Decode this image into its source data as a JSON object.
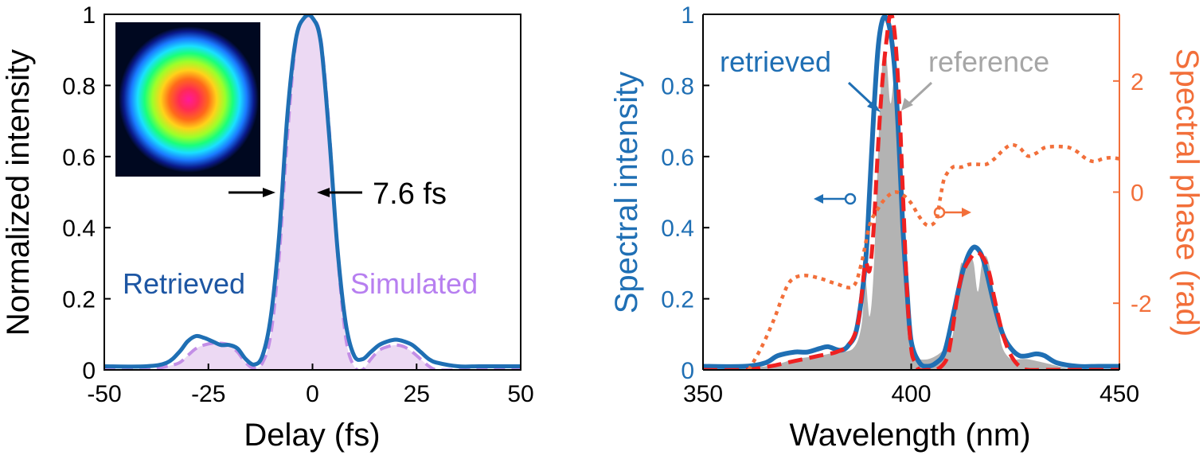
{
  "chart_data": [
    {
      "type": "line",
      "xlabel": "Delay (fs)",
      "ylabel": "Normalized intensity",
      "xlim": [
        -50,
        50
      ],
      "ylim": [
        0,
        1
      ],
      "xticks": [
        -50,
        -25,
        0,
        25,
        50
      ],
      "xtick_labels": [
        "-50",
        "-25",
        "0",
        "25",
        "50"
      ],
      "yticks": [
        0,
        0.2,
        0.4,
        0.6,
        0.8,
        1
      ],
      "ytick_labels": [
        "0",
        "0.2",
        "0.4",
        "0.6",
        "0.8",
        "1"
      ],
      "legend_labels": {
        "retrieved": "Retrieved",
        "simulated": "Simulated"
      },
      "annotation": "7.6 fs",
      "inset": "beam profile image",
      "colors": {
        "retrieved": "#1f6fb4",
        "simulated_line": "#c38ee6",
        "simulated_fill": "#ecd9f3",
        "retrieved_text": "#1d56a3",
        "simulated_text": "#b77ff0"
      },
      "series": [
        {
          "name": "Retrieved",
          "x": [
            -50,
            -40,
            -35,
            -32,
            -30,
            -28,
            -26,
            -24,
            -22,
            -20,
            -18,
            -16,
            -14,
            -12,
            -10,
            -8,
            -6,
            -4,
            -2,
            0,
            2,
            4,
            6,
            8,
            10,
            12,
            14,
            16,
            18,
            20,
            22,
            24,
            26,
            28,
            30,
            35,
            40,
            45,
            50
          ],
          "y": [
            0.01,
            0.01,
            0.02,
            0.05,
            0.08,
            0.095,
            0.09,
            0.08,
            0.07,
            0.07,
            0.06,
            0.03,
            0.015,
            0.04,
            0.15,
            0.38,
            0.72,
            0.93,
            0.99,
            0.99,
            0.92,
            0.66,
            0.34,
            0.13,
            0.04,
            0.03,
            0.05,
            0.07,
            0.08,
            0.085,
            0.08,
            0.07,
            0.05,
            0.03,
            0.02,
            0.01,
            0.01,
            0.01,
            0.01
          ]
        },
        {
          "name": "Simulated",
          "x": [
            -50,
            -40,
            -35,
            -32,
            -30,
            -28,
            -26,
            -24,
            -22,
            -20,
            -18,
            -16,
            -14,
            -12,
            -10,
            -8,
            -6,
            -4,
            -2,
            0,
            2,
            4,
            6,
            8,
            10,
            12,
            14,
            16,
            18,
            20,
            22,
            24,
            26,
            28,
            30,
            35,
            40,
            45,
            50
          ],
          "y": [
            0.0,
            0.0,
            0.01,
            0.02,
            0.04,
            0.06,
            0.07,
            0.075,
            0.075,
            0.07,
            0.05,
            0.02,
            0.005,
            0.02,
            0.1,
            0.32,
            0.66,
            0.92,
            0.99,
            0.99,
            0.93,
            0.68,
            0.33,
            0.09,
            0.01,
            0.0,
            0.03,
            0.055,
            0.065,
            0.07,
            0.065,
            0.05,
            0.03,
            0.01,
            0.0,
            0.0,
            0.0,
            0.0,
            0.0
          ]
        }
      ]
    },
    {
      "type": "line",
      "xlabel": "Wavelength (nm)",
      "ylabel": "Spectral intensity",
      "y2label": "Spectral phase (rad)",
      "xlim": [
        350,
        450
      ],
      "ylim": [
        0,
        1
      ],
      "y2lim": [
        -3.2,
        3.2
      ],
      "xticks": [
        350,
        400,
        450
      ],
      "xtick_labels": [
        "350",
        "400",
        "450"
      ],
      "yticks": [
        0,
        0.2,
        0.4,
        0.6,
        0.8,
        1
      ],
      "ytick_labels": [
        "0",
        "0.2",
        "0.4",
        "0.6",
        "0.8",
        "1"
      ],
      "y2ticks": [
        -2,
        0,
        2
      ],
      "y2tick_labels": [
        "-2",
        "0",
        "2"
      ],
      "legend_labels": {
        "retrieved": "retrieved",
        "reference": "reference"
      },
      "colors": {
        "retrieved": "#1f6fb4",
        "reference": "#b3b3b3",
        "dashed": "#ef2121",
        "phase": "#f26f3a"
      },
      "series": [
        {
          "name": "retrieved",
          "x": [
            350,
            360,
            365,
            368,
            372,
            375,
            378,
            380,
            383,
            385,
            387,
            389,
            390,
            391,
            392,
            393,
            394,
            395,
            396,
            397,
            398,
            399,
            400,
            402,
            404,
            406,
            408,
            410,
            412,
            413,
            414,
            415,
            416,
            417,
            418,
            420,
            422,
            424,
            426,
            428,
            430,
            432,
            435,
            440,
            445,
            450
          ],
          "y": [
            0.01,
            0.01,
            0.02,
            0.04,
            0.05,
            0.05,
            0.06,
            0.065,
            0.055,
            0.07,
            0.12,
            0.3,
            0.5,
            0.72,
            0.9,
            0.98,
            0.99,
            0.95,
            0.85,
            0.65,
            0.4,
            0.22,
            0.08,
            0.02,
            0.01,
            0.02,
            0.05,
            0.15,
            0.26,
            0.3,
            0.33,
            0.345,
            0.34,
            0.32,
            0.28,
            0.18,
            0.1,
            0.06,
            0.04,
            0.04,
            0.045,
            0.04,
            0.02,
            0.01,
            0.01,
            0.01
          ]
        },
        {
          "name": "reference",
          "x": [
            350,
            365,
            372,
            378,
            382,
            386,
            388,
            389,
            390,
            391,
            392,
            393,
            394,
            395,
            396,
            397,
            398,
            399,
            400,
            401,
            402,
            404,
            406,
            408,
            410,
            411,
            412,
            413,
            414,
            415,
            416,
            417,
            418,
            419,
            420,
            421,
            422,
            424,
            426,
            428,
            432,
            440,
            450
          ],
          "y": [
            0.0,
            0.01,
            0.03,
            0.04,
            0.05,
            0.06,
            0.12,
            0.25,
            0.15,
            0.28,
            0.6,
            0.85,
            0.88,
            0.75,
            0.82,
            0.72,
            0.5,
            0.15,
            0.05,
            0.04,
            0.03,
            0.03,
            0.04,
            0.06,
            0.1,
            0.22,
            0.3,
            0.28,
            0.32,
            0.3,
            0.22,
            0.3,
            0.32,
            0.28,
            0.2,
            0.12,
            0.06,
            0.03,
            0.03,
            0.03,
            0.02,
            0.0,
            0.0
          ]
        },
        {
          "x": [
            350,
            360,
            366,
            370,
            374,
            378,
            382,
            385,
            387,
            388,
            389,
            390,
            391,
            392,
            393,
            394,
            395,
            396,
            397,
            398,
            399,
            400,
            401,
            402,
            404,
            406,
            408,
            409,
            410,
            411,
            412,
            413,
            414,
            415,
            416,
            417,
            418,
            419,
            420,
            422,
            424,
            426,
            428,
            432,
            440,
            450
          ],
          "y": [
            0.0,
            0.0,
            0.01,
            0.02,
            0.03,
            0.04,
            0.05,
            0.07,
            0.12,
            0.2,
            0.3,
            0.28,
            0.4,
            0.62,
            0.8,
            0.92,
            1.0,
            0.95,
            0.78,
            0.5,
            0.22,
            0.06,
            0.02,
            0.0,
            0.0,
            0.0,
            0.02,
            0.05,
            0.12,
            0.2,
            0.26,
            0.29,
            0.31,
            0.325,
            0.33,
            0.32,
            0.3,
            0.26,
            0.2,
            0.1,
            0.04,
            0.01,
            0.0,
            0.0,
            0.0,
            0.0
          ]
        },
        {
          "axis": "y2",
          "x": [
            361,
            364,
            367,
            369,
            371,
            374,
            378,
            382,
            386,
            388,
            390,
            392,
            394,
            396,
            398,
            400,
            402,
            404,
            406,
            407,
            408,
            410,
            412,
            414,
            416,
            418,
            420,
            422,
            424,
            426,
            428,
            430,
            432,
            434,
            436,
            438,
            440,
            442,
            444,
            446,
            448,
            450
          ],
          "y": [
            -3.2,
            -2.8,
            -2.3,
            -1.9,
            -1.6,
            -1.5,
            -1.55,
            -1.65,
            -1.7,
            -1.3,
            -0.6,
            -0.3,
            -0.1,
            0.0,
            -0.05,
            -0.2,
            -0.45,
            -0.6,
            -0.5,
            -0.1,
            0.25,
            0.45,
            0.45,
            0.5,
            0.5,
            0.5,
            0.6,
            0.75,
            0.85,
            0.8,
            0.65,
            0.7,
            0.8,
            0.82,
            0.82,
            0.8,
            0.72,
            0.6,
            0.55,
            0.6,
            0.62,
            0.6
          ]
        }
      ]
    }
  ]
}
